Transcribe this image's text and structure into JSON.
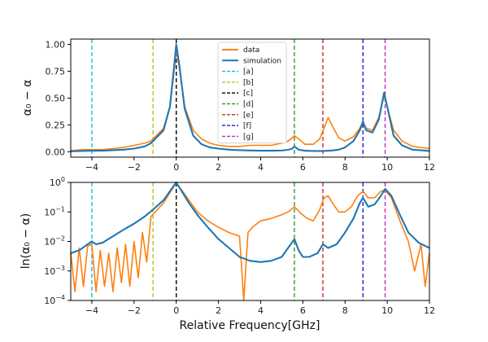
{
  "chart_data": [
    {
      "type": "line",
      "panel": "top",
      "ylabel": "α₀ − α",
      "xlim": [
        -5,
        12
      ],
      "ylim": [
        -0.05,
        1.05
      ],
      "yscale": "linear",
      "x_ticks": [
        -4,
        -2,
        0,
        2,
        4,
        6,
        8,
        10,
        12
      ],
      "y_ticks": [
        "0.00",
        "0.25",
        "0.50",
        "0.75",
        "1.00"
      ],
      "y_tick_values": [
        0,
        0.25,
        0.5,
        0.75,
        1.0
      ],
      "grid": false,
      "legend_position": "upper center",
      "legend": [
        {
          "label": "data",
          "color": "#ff7f0e",
          "style": "solid"
        },
        {
          "label": "simulation",
          "color": "#1f77b4",
          "style": "solid"
        },
        {
          "label": "[a]",
          "color": "#17becf",
          "style": "dashed"
        },
        {
          "label": "[b]",
          "color": "#bcbd22",
          "style": "dashed"
        },
        {
          "label": "[c]",
          "color": "#000000",
          "style": "dashed"
        },
        {
          "label": "[d]",
          "color": "#2ca02c",
          "style": "dashed"
        },
        {
          "label": "[e]",
          "color": "#d62728",
          "style": "dashed"
        },
        {
          "label": "[f]",
          "color": "#1f1fd6",
          "style": "dashed"
        },
        {
          "label": "[g]",
          "color": "#c02cc0",
          "style": "dashed"
        }
      ],
      "series": [
        {
          "name": "data",
          "color": "#ff7f0e",
          "x": [
            -5,
            -4.5,
            -4,
            -3.5,
            -3,
            -2.5,
            -2,
            -1.5,
            -1.2,
            -1.0,
            -0.6,
            -0.3,
            -0.1,
            0,
            0.15,
            0.4,
            0.8,
            1.2,
            1.6,
            2,
            2.5,
            3,
            3.5,
            4,
            4.5,
            5,
            5.3,
            5.5,
            5.6,
            5.8,
            6.1,
            6.5,
            6.8,
            7.0,
            7.2,
            7.4,
            7.7,
            8.0,
            8.4,
            8.7,
            8.85,
            9.0,
            9.3,
            9.6,
            9.85,
            10.0,
            10.3,
            10.7,
            11.2,
            12
          ],
          "y": [
            0.01,
            0.02,
            0.02,
            0.02,
            0.03,
            0.04,
            0.06,
            0.08,
            0.1,
            0.14,
            0.22,
            0.42,
            0.75,
            0.95,
            0.78,
            0.42,
            0.2,
            0.12,
            0.08,
            0.06,
            0.05,
            0.05,
            0.06,
            0.06,
            0.06,
            0.08,
            0.1,
            0.13,
            0.15,
            0.12,
            0.07,
            0.07,
            0.12,
            0.22,
            0.32,
            0.24,
            0.13,
            0.1,
            0.14,
            0.22,
            0.28,
            0.22,
            0.2,
            0.32,
            0.52,
            0.42,
            0.2,
            0.1,
            0.05,
            0.03
          ]
        },
        {
          "name": "simulation",
          "color": "#1f77b4",
          "x": [
            -5,
            -4.5,
            -4,
            -3.5,
            -3,
            -2.5,
            -2,
            -1.5,
            -1.2,
            -1.0,
            -0.6,
            -0.3,
            -0.1,
            0,
            0.15,
            0.4,
            0.8,
            1.2,
            1.6,
            2,
            2.5,
            3,
            3.5,
            4,
            4.5,
            5,
            5.3,
            5.5,
            5.6,
            5.8,
            6.1,
            6.5,
            6.8,
            7.0,
            7.2,
            7.4,
            7.7,
            8.0,
            8.4,
            8.7,
            8.85,
            9.0,
            9.3,
            9.6,
            9.85,
            10.0,
            10.3,
            10.7,
            11.2,
            12
          ],
          "y": [
            0.005,
            0.007,
            0.01,
            0.01,
            0.015,
            0.02,
            0.03,
            0.05,
            0.08,
            0.12,
            0.2,
            0.42,
            0.8,
            1.0,
            0.8,
            0.4,
            0.15,
            0.07,
            0.04,
            0.03,
            0.02,
            0.015,
            0.012,
            0.01,
            0.01,
            0.012,
            0.018,
            0.03,
            0.05,
            0.02,
            0.01,
            0.008,
            0.008,
            0.008,
            0.01,
            0.012,
            0.02,
            0.04,
            0.1,
            0.2,
            0.28,
            0.2,
            0.18,
            0.3,
            0.55,
            0.42,
            0.15,
            0.06,
            0.02,
            0.008
          ]
        }
      ],
      "vlines": [
        {
          "label": "[a]",
          "x": -4.0,
          "color": "#17becf"
        },
        {
          "label": "[b]",
          "x": -1.1,
          "color": "#bcbd22"
        },
        {
          "label": "[c]",
          "x": 0.0,
          "color": "#000000"
        },
        {
          "label": "[d]",
          "x": 5.6,
          "color": "#2ca02c"
        },
        {
          "label": "[e]",
          "x": 6.95,
          "color": "#d62728"
        },
        {
          "label": "[f]",
          "x": 8.85,
          "color": "#1f1fd6"
        },
        {
          "label": "[g]",
          "x": 9.9,
          "color": "#c02cc0"
        }
      ]
    },
    {
      "type": "line",
      "panel": "bottom",
      "ylabel": "ln(α₀ − α)",
      "xlabel": "Relative Frequency[GHz]",
      "xlim": [
        -5,
        12
      ],
      "ylim": [
        0.0001,
        1
      ],
      "yscale": "log",
      "x_ticks": [
        -4,
        -2,
        0,
        2,
        4,
        6,
        8,
        10,
        12
      ],
      "y_ticks": [
        {
          "base": "10",
          "exp": "0"
        },
        {
          "base": "10",
          "exp": "-1"
        },
        {
          "base": "10",
          "exp": "-2"
        },
        {
          "base": "10",
          "exp": "-3"
        },
        {
          "base": "10",
          "exp": "-4"
        }
      ],
      "y_tick_values": [
        1,
        0.1,
        0.01,
        0.001,
        0.0001
      ],
      "grid": false,
      "series": [
        {
          "name": "data",
          "color": "#ff7f0e",
          "x": [
            -5,
            -4.8,
            -4.6,
            -4.4,
            -4.2,
            -4.0,
            -3.8,
            -3.6,
            -3.4,
            -3.2,
            -3.0,
            -2.8,
            -2.6,
            -2.4,
            -2.2,
            -2.0,
            -1.8,
            -1.6,
            -1.4,
            -1.2,
            -1.0,
            -0.6,
            -0.3,
            0,
            0.3,
            0.6,
            1.0,
            1.5,
            2.0,
            2.5,
            3.0,
            3.2,
            3.4,
            3.6,
            4.0,
            4.5,
            5.0,
            5.3,
            5.6,
            5.9,
            6.2,
            6.5,
            6.8,
            7.0,
            7.2,
            7.4,
            7.7,
            8.0,
            8.3,
            8.6,
            8.85,
            9.1,
            9.4,
            9.7,
            9.9,
            10.2,
            10.6,
            11.0,
            11.3,
            11.6,
            11.8,
            12.0
          ],
          "y": [
            0.004,
            0.0002,
            0.006,
            0.0003,
            0.007,
            0.008,
            0.0002,
            0.005,
            0.0003,
            0.004,
            0.0002,
            0.006,
            0.0004,
            0.008,
            0.0003,
            0.01,
            0.0006,
            0.02,
            0.002,
            0.07,
            0.1,
            0.2,
            0.45,
            0.95,
            0.5,
            0.25,
            0.1,
            0.05,
            0.03,
            0.02,
            0.015,
            0.0001,
            0.02,
            0.03,
            0.05,
            0.06,
            0.08,
            0.1,
            0.15,
            0.09,
            0.06,
            0.05,
            0.12,
            0.3,
            0.35,
            0.2,
            0.1,
            0.1,
            0.15,
            0.35,
            0.5,
            0.3,
            0.3,
            0.5,
            0.55,
            0.3,
            0.05,
            0.01,
            0.001,
            0.008,
            0.0003,
            0.004
          ]
        },
        {
          "name": "simulation",
          "color": "#1f77b4",
          "x": [
            -5,
            -4.6,
            -4.2,
            -4.0,
            -3.8,
            -3.5,
            -3.0,
            -2.5,
            -2.0,
            -1.5,
            -1.1,
            -0.6,
            -0.3,
            0,
            0.3,
            0.6,
            1.0,
            1.5,
            2.0,
            2.5,
            3.0,
            3.5,
            4.0,
            4.5,
            5.0,
            5.3,
            5.6,
            5.8,
            6.0,
            6.3,
            6.7,
            6.95,
            7.2,
            7.6,
            8.0,
            8.4,
            8.7,
            8.85,
            9.1,
            9.4,
            9.7,
            9.9,
            10.2,
            10.6,
            11.0,
            11.5,
            12.0
          ],
          "y": [
            0.004,
            0.005,
            0.008,
            0.01,
            0.008,
            0.009,
            0.015,
            0.025,
            0.04,
            0.07,
            0.12,
            0.25,
            0.5,
            1.0,
            0.45,
            0.2,
            0.08,
            0.03,
            0.012,
            0.006,
            0.003,
            0.0022,
            0.002,
            0.0022,
            0.003,
            0.006,
            0.012,
            0.005,
            0.003,
            0.003,
            0.004,
            0.008,
            0.006,
            0.008,
            0.02,
            0.06,
            0.2,
            0.3,
            0.15,
            0.18,
            0.35,
            0.6,
            0.35,
            0.08,
            0.02,
            0.009,
            0.006
          ]
        }
      ],
      "vlines": [
        {
          "label": "[a]",
          "x": -4.0,
          "color": "#17becf"
        },
        {
          "label": "[b]",
          "x": -1.1,
          "color": "#bcbd22"
        },
        {
          "label": "[c]",
          "x": 0.0,
          "color": "#000000"
        },
        {
          "label": "[d]",
          "x": 5.6,
          "color": "#2ca02c"
        },
        {
          "label": "[e]",
          "x": 6.95,
          "color": "#d62728"
        },
        {
          "label": "[f]",
          "x": 8.85,
          "color": "#1f1fd6"
        },
        {
          "label": "[g]",
          "x": 9.9,
          "color": "#c02cc0"
        }
      ]
    }
  ]
}
